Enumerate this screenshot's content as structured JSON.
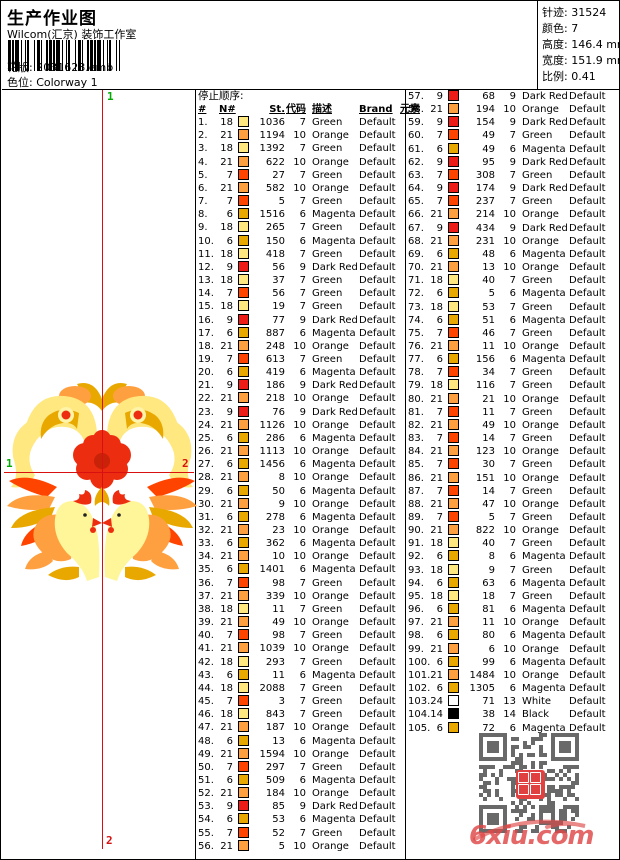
{
  "header": {
    "title": "生产作业图",
    "studio": "Wilcom(汇京) 装饰工作室",
    "pattern_label": "花版:",
    "pattern_value": "2031628.emb",
    "colorway_label": "色位:",
    "colorway_value": "Colorway 1",
    "stats": [
      {
        "label": "针迹:",
        "value": "31524"
      },
      {
        "label": "颜色:",
        "value": "7"
      },
      {
        "label": "高度:",
        "value": "146.4 mm"
      },
      {
        "label": "宽度:",
        "value": "151.9 mm"
      },
      {
        "label": "比例:",
        "value": "0.41"
      }
    ]
  },
  "design": {
    "marker_top": "1",
    "marker_bottom": "2",
    "marker_left": "1",
    "marker_right": "2"
  },
  "table": {
    "section_title": "停止顺序:",
    "columns": [
      "#",
      "N#",
      "",
      "St.",
      "代码",
      "描述",
      "Brand",
      "元素"
    ],
    "brand_default": "Default",
    "rows_key": [
      "seq",
      "needle",
      "stitches",
      "code",
      "description"
    ],
    "rows": [
      [
        1,
        18,
        1036,
        7,
        "Green"
      ],
      [
        2,
        21,
        1194,
        10,
        "Orange"
      ],
      [
        3,
        18,
        1392,
        7,
        "Green"
      ],
      [
        4,
        21,
        622,
        10,
        "Orange"
      ],
      [
        5,
        7,
        27,
        7,
        "Green"
      ],
      [
        6,
        21,
        582,
        10,
        "Orange"
      ],
      [
        7,
        7,
        5,
        7,
        "Green"
      ],
      [
        8,
        6,
        1516,
        6,
        "Magenta"
      ],
      [
        9,
        18,
        265,
        7,
        "Green"
      ],
      [
        10,
        6,
        150,
        6,
        "Magenta"
      ],
      [
        11,
        18,
        418,
        7,
        "Green"
      ],
      [
        12,
        9,
        56,
        9,
        "Dark Red"
      ],
      [
        13,
        18,
        37,
        7,
        "Green"
      ],
      [
        14,
        7,
        56,
        7,
        "Green"
      ],
      [
        15,
        18,
        19,
        7,
        "Green"
      ],
      [
        16,
        9,
        77,
        9,
        "Dark Red"
      ],
      [
        17,
        6,
        887,
        6,
        "Magenta"
      ],
      [
        18,
        21,
        248,
        10,
        "Orange"
      ],
      [
        19,
        7,
        613,
        7,
        "Green"
      ],
      [
        20,
        6,
        419,
        6,
        "Magenta"
      ],
      [
        21,
        9,
        186,
        9,
        "Dark Red"
      ],
      [
        22,
        21,
        218,
        10,
        "Orange"
      ],
      [
        23,
        9,
        76,
        9,
        "Dark Red"
      ],
      [
        24,
        21,
        1126,
        10,
        "Orange"
      ],
      [
        25,
        6,
        286,
        6,
        "Magenta"
      ],
      [
        26,
        21,
        1113,
        10,
        "Orange"
      ],
      [
        27,
        6,
        1456,
        6,
        "Magenta"
      ],
      [
        28,
        21,
        8,
        10,
        "Orange"
      ],
      [
        29,
        6,
        50,
        6,
        "Magenta"
      ],
      [
        30,
        21,
        9,
        10,
        "Orange"
      ],
      [
        31,
        6,
        278,
        6,
        "Magenta"
      ],
      [
        32,
        21,
        23,
        10,
        "Orange"
      ],
      [
        33,
        6,
        362,
        6,
        "Magenta"
      ],
      [
        34,
        21,
        10,
        10,
        "Orange"
      ],
      [
        35,
        6,
        1401,
        6,
        "Magenta"
      ],
      [
        36,
        7,
        98,
        7,
        "Green"
      ],
      [
        37,
        21,
        339,
        10,
        "Orange"
      ],
      [
        38,
        18,
        11,
        7,
        "Green"
      ],
      [
        39,
        21,
        49,
        10,
        "Orange"
      ],
      [
        40,
        7,
        98,
        7,
        "Green"
      ],
      [
        41,
        21,
        1039,
        10,
        "Orange"
      ],
      [
        42,
        18,
        293,
        7,
        "Green"
      ],
      [
        43,
        6,
        11,
        6,
        "Magenta"
      ],
      [
        44,
        18,
        2088,
        7,
        "Green"
      ],
      [
        45,
        7,
        3,
        7,
        "Green"
      ],
      [
        46,
        18,
        843,
        7,
        "Green"
      ],
      [
        47,
        21,
        187,
        10,
        "Orange"
      ],
      [
        48,
        6,
        13,
        6,
        "Magenta"
      ],
      [
        49,
        21,
        1594,
        10,
        "Orange"
      ],
      [
        50,
        7,
        297,
        7,
        "Green"
      ],
      [
        51,
        6,
        509,
        6,
        "Magenta"
      ],
      [
        52,
        21,
        184,
        10,
        "Orange"
      ],
      [
        53,
        9,
        85,
        9,
        "Dark Red"
      ],
      [
        54,
        6,
        53,
        6,
        "Magenta"
      ],
      [
        55,
        7,
        52,
        7,
        "Green"
      ],
      [
        56,
        21,
        5,
        10,
        "Orange"
      ],
      [
        57,
        9,
        68,
        9,
        "Dark Red"
      ],
      [
        58,
        21,
        194,
        10,
        "Orange"
      ],
      [
        59,
        9,
        154,
        9,
        "Dark Red"
      ],
      [
        60,
        7,
        49,
        7,
        "Green"
      ],
      [
        61,
        6,
        49,
        6,
        "Magenta"
      ],
      [
        62,
        9,
        95,
        9,
        "Dark Red"
      ],
      [
        63,
        7,
        308,
        7,
        "Green"
      ],
      [
        64,
        9,
        174,
        9,
        "Dark Red"
      ],
      [
        65,
        7,
        237,
        7,
        "Green"
      ],
      [
        66,
        21,
        214,
        10,
        "Orange"
      ],
      [
        67,
        9,
        434,
        9,
        "Dark Red"
      ],
      [
        68,
        21,
        231,
        10,
        "Orange"
      ],
      [
        69,
        6,
        48,
        6,
        "Magenta"
      ],
      [
        70,
        21,
        13,
        10,
        "Orange"
      ],
      [
        71,
        18,
        40,
        7,
        "Green"
      ],
      [
        72,
        6,
        5,
        6,
        "Magenta"
      ],
      [
        73,
        18,
        53,
        7,
        "Green"
      ],
      [
        74,
        6,
        51,
        6,
        "Magenta"
      ],
      [
        75,
        7,
        46,
        7,
        "Green"
      ],
      [
        76,
        21,
        11,
        10,
        "Orange"
      ],
      [
        77,
        6,
        156,
        6,
        "Magenta"
      ],
      [
        78,
        7,
        34,
        7,
        "Green"
      ],
      [
        79,
        18,
        116,
        7,
        "Green"
      ],
      [
        80,
        21,
        21,
        10,
        "Orange"
      ],
      [
        81,
        7,
        11,
        7,
        "Green"
      ],
      [
        82,
        21,
        49,
        10,
        "Orange"
      ],
      [
        83,
        7,
        14,
        7,
        "Green"
      ],
      [
        84,
        21,
        123,
        10,
        "Orange"
      ],
      [
        85,
        7,
        30,
        7,
        "Green"
      ],
      [
        86,
        21,
        151,
        10,
        "Orange"
      ],
      [
        87,
        7,
        14,
        7,
        "Green"
      ],
      [
        88,
        21,
        47,
        10,
        "Orange"
      ],
      [
        89,
        7,
        5,
        7,
        "Green"
      ],
      [
        90,
        21,
        822,
        10,
        "Orange"
      ],
      [
        91,
        18,
        40,
        7,
        "Green"
      ],
      [
        92,
        6,
        8,
        6,
        "Magenta"
      ],
      [
        93,
        18,
        9,
        7,
        "Green"
      ],
      [
        94,
        6,
        63,
        6,
        "Magenta"
      ],
      [
        95,
        18,
        18,
        7,
        "Green"
      ],
      [
        96,
        6,
        81,
        6,
        "Magenta"
      ],
      [
        97,
        21,
        11,
        10,
        "Orange"
      ],
      [
        98,
        6,
        80,
        6,
        "Magenta"
      ],
      [
        99,
        21,
        6,
        10,
        "Orange"
      ],
      [
        100,
        6,
        99,
        6,
        "Magenta"
      ],
      [
        101,
        21,
        1484,
        10,
        "Orange"
      ],
      [
        102,
        6,
        1305,
        6,
        "Magenta"
      ],
      [
        103,
        24,
        71,
        13,
        "White"
      ],
      [
        104,
        14,
        38,
        14,
        "Black"
      ],
      [
        105,
        6,
        72,
        6,
        "Magenta"
      ]
    ],
    "left_column_count": 56
  },
  "thread_colors": {
    "6": "#E8A800",
    "7": "#FF4400",
    "9": "#EE1C16",
    "14": "#000000",
    "18": "#FFE880",
    "21": "#FFA040",
    "24": "#FFFFFF"
  },
  "ui_colors": {
    "crosshair": "#d81010",
    "marker_start": "#00aa00",
    "marker_end": "#d81010",
    "watermark": "#e04848",
    "qr_module": "#555555"
  },
  "watermark": {
    "site": "6xiu.com"
  }
}
